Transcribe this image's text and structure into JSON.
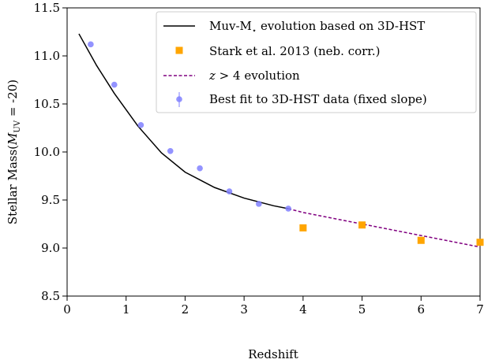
{
  "chart_data": {
    "type": "line",
    "title": "",
    "xlabel": "Redshift",
    "ylabel_prefix": "Stellar Mass(",
    "ylabel_italic": "M",
    "ylabel_sub": "UV",
    "ylabel_suffix": " = -20)",
    "xlim": [
      0,
      7
    ],
    "ylim": [
      8.5,
      11.5
    ],
    "x_ticks": [
      0,
      1,
      2,
      3,
      4,
      5,
      6,
      7
    ],
    "y_ticks": [
      8.5,
      9.0,
      9.5,
      10.0,
      10.5,
      11.0,
      11.5
    ],
    "x_tick_labels": [
      "0",
      "1",
      "2",
      "3",
      "4",
      "5",
      "6",
      "7"
    ],
    "y_tick_labels": [
      "8.5",
      "9.0",
      "9.5",
      "10.0",
      "10.5",
      "11.0",
      "11.5"
    ],
    "grid": false,
    "legend_position": "top-right",
    "series": [
      {
        "name": "Muv-M⋆ evolution based on 3D-HST",
        "legend_main": "Muv-M",
        "legend_star": "⋆",
        "legend_rest": " evolution based on 3D-HST",
        "kind": "line",
        "color": "#000000",
        "x": [
          0.2,
          0.5,
          0.8,
          1.2,
          1.6,
          2.0,
          2.5,
          3.0,
          3.5,
          3.75
        ],
        "y": [
          11.23,
          10.9,
          10.61,
          10.27,
          9.99,
          9.79,
          9.63,
          9.52,
          9.44,
          9.41
        ]
      },
      {
        "name": "Stark et al. 2013 (neb. corr.)",
        "kind": "square",
        "color": "#FFA500",
        "x": [
          4.0,
          5.0,
          6.0,
          7.0
        ],
        "y": [
          9.21,
          9.24,
          9.08,
          9.06
        ]
      },
      {
        "name_italic": "z",
        "name_rest": " > 4 evolution",
        "kind": "dashed",
        "color": "#800080",
        "x": [
          3.75,
          4.0,
          5.0,
          6.0,
          7.0
        ],
        "y": [
          9.41,
          9.37,
          9.25,
          9.13,
          9.01
        ]
      },
      {
        "name": "Best fit to 3D-HST data (fixed slope)",
        "kind": "errorbar-point",
        "color": "#8080FF",
        "x": [
          0.4,
          0.8,
          1.25,
          1.75,
          2.25,
          2.75,
          3.25,
          3.75
        ],
        "y": [
          11.12,
          10.7,
          10.28,
          10.01,
          9.83,
          9.59,
          9.46,
          9.41
        ]
      }
    ]
  }
}
